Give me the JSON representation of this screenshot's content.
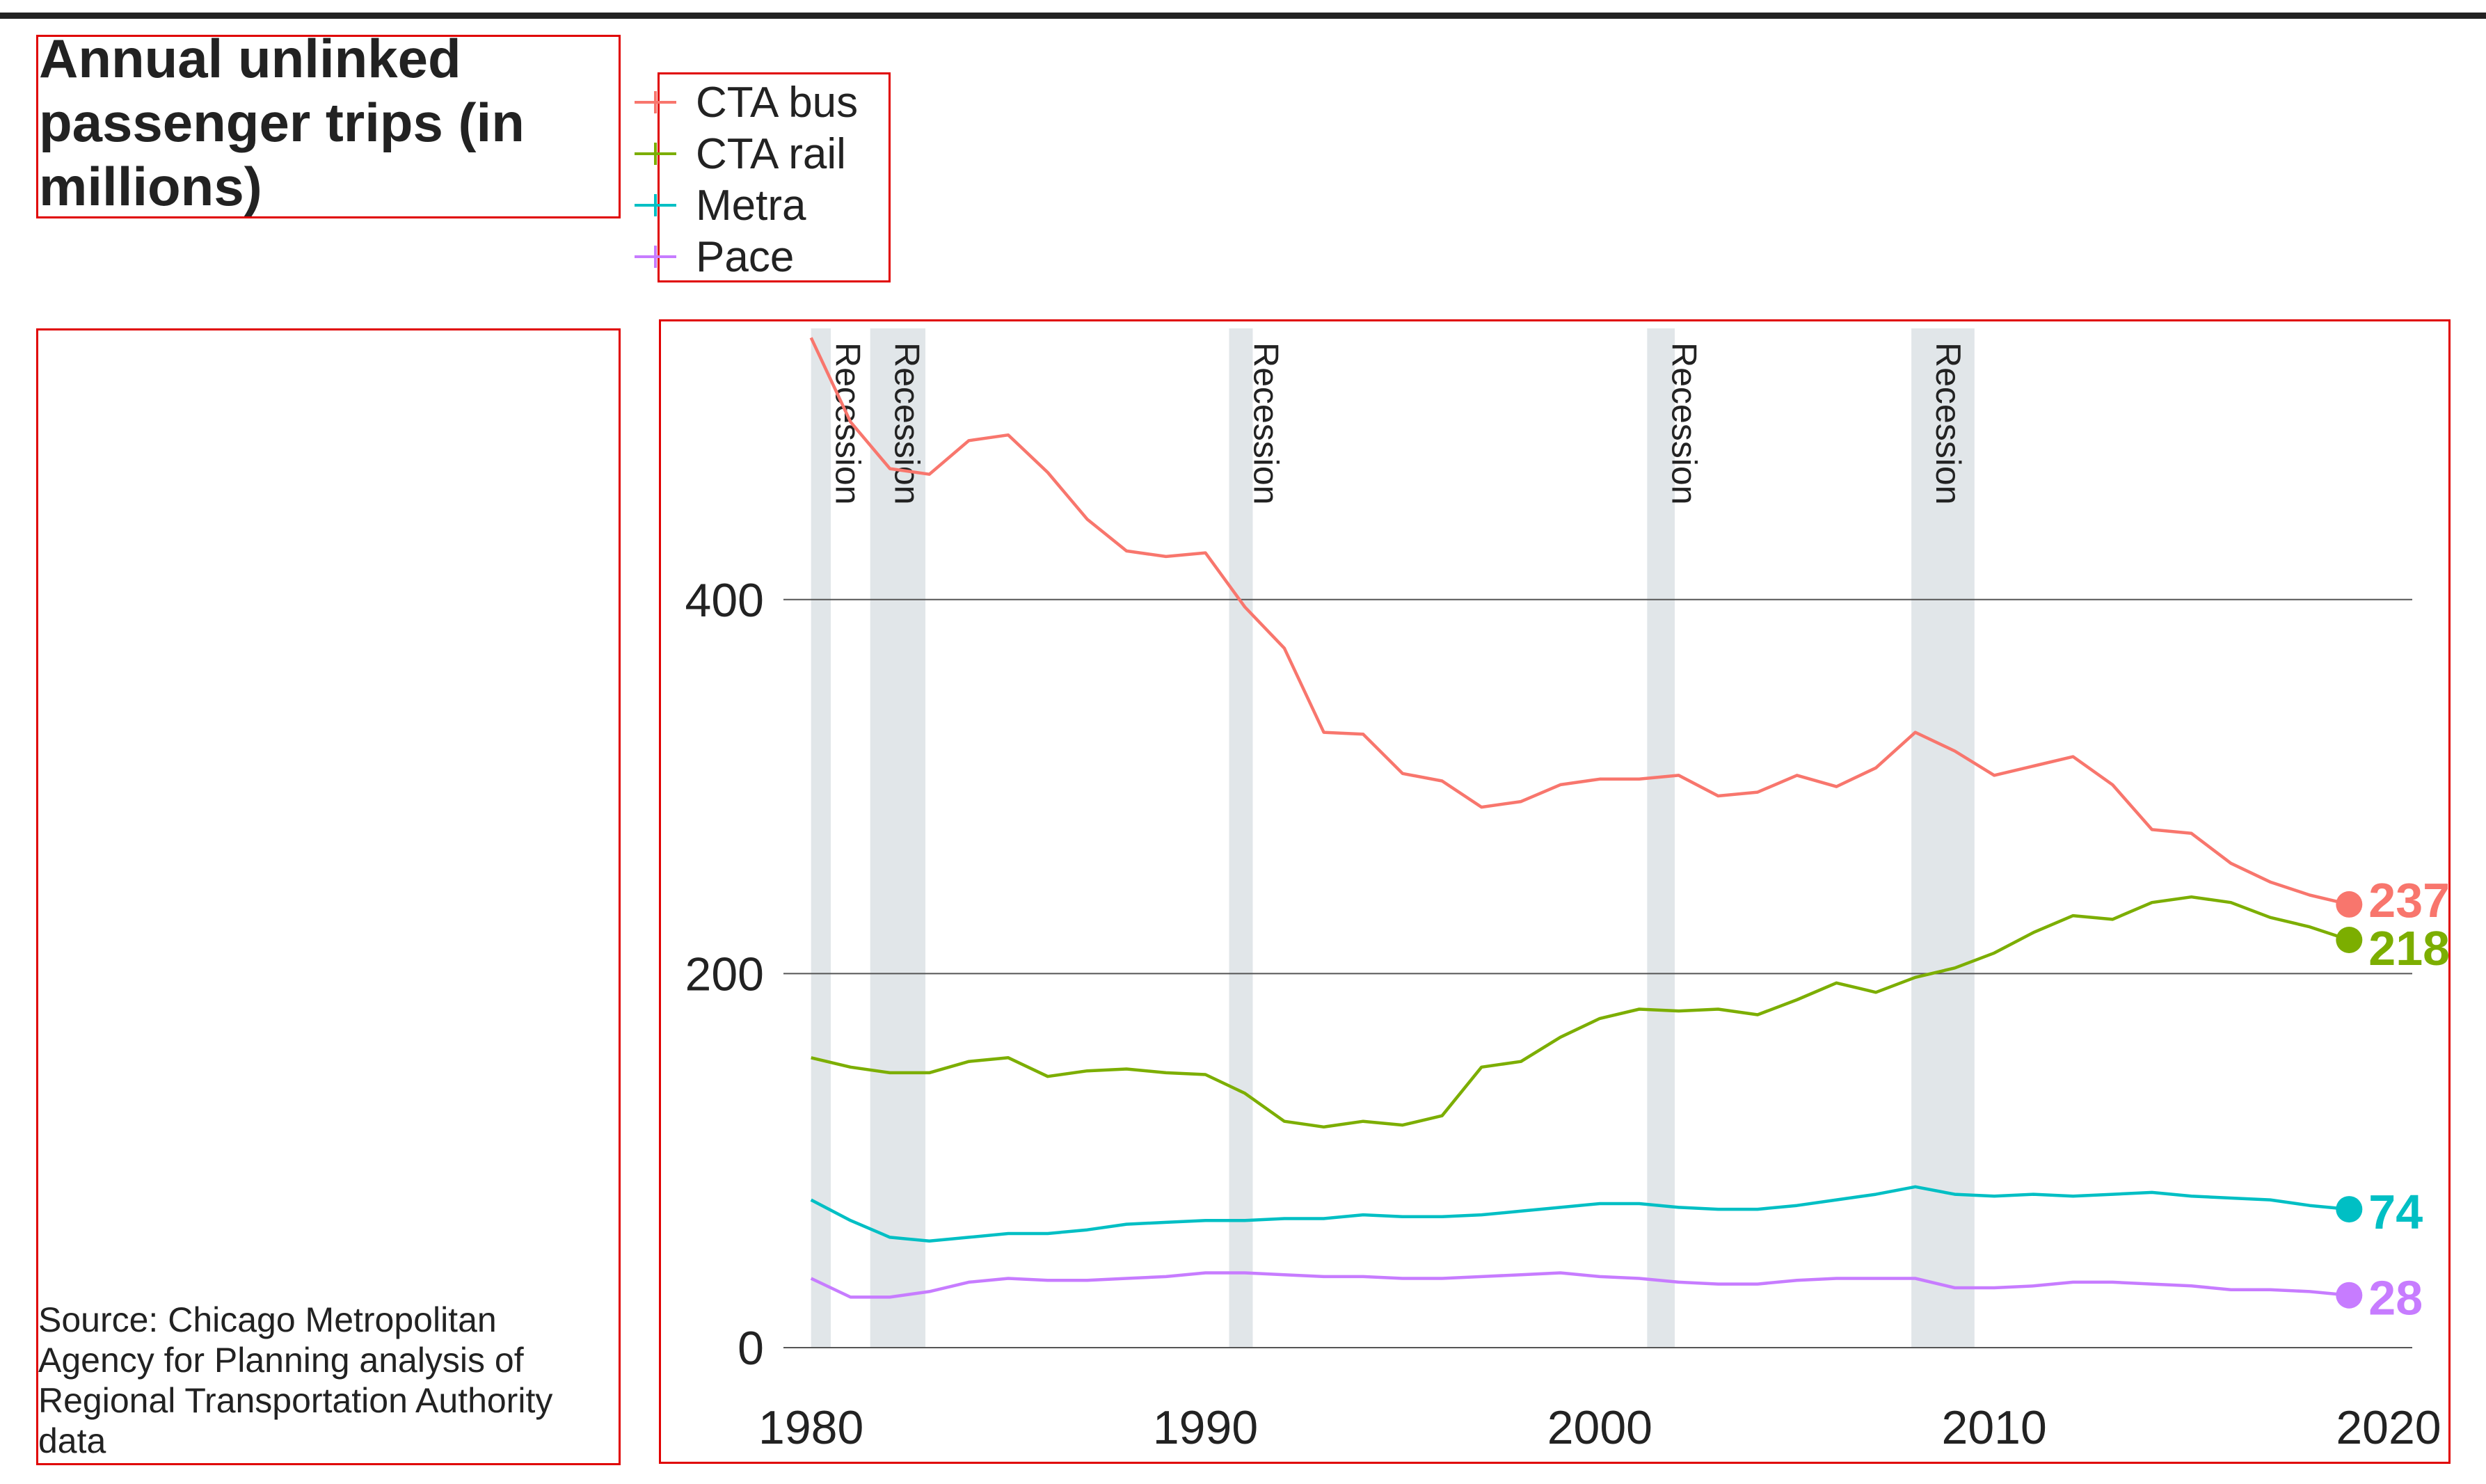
{
  "title": "Annual unlinked passenger trips (in millions)",
  "source": "Source: Chicago Metropolitan Agency for Planning analysis of Regional Transportation Authority data",
  "legend": [
    {
      "name": "CTA bus",
      "color": "#f8766d"
    },
    {
      "name": "CTA rail",
      "color": "#7cae00"
    },
    {
      "name": "Metra",
      "color": "#00bfc4"
    },
    {
      "name": "Pace",
      "color": "#c77cff"
    }
  ],
  "chart_data": {
    "type": "line",
    "title": "Annual unlinked passenger trips (in millions)",
    "xlabel": "",
    "ylabel": "",
    "xlim": [
      1979.3,
      2020.6
    ],
    "ylim": [
      0,
      545
    ],
    "x_ticks": [
      1980,
      1990,
      2000,
      2010,
      2020
    ],
    "y_ticks": [
      0,
      200,
      400
    ],
    "grid": "horizontal",
    "legend_position": "top",
    "recessions": [
      {
        "start": 1980.0,
        "end": 1980.5,
        "label": "Recession"
      },
      {
        "start": 1981.5,
        "end": 1982.9,
        "label": "Recession"
      },
      {
        "start": 1990.6,
        "end": 1991.2,
        "label": "Recession"
      },
      {
        "start": 2001.2,
        "end": 2001.9,
        "label": "Recession"
      },
      {
        "start": 2007.9,
        "end": 2009.5,
        "label": "Recession"
      }
    ],
    "x": [
      1980,
      1981,
      1982,
      1983,
      1984,
      1985,
      1986,
      1987,
      1988,
      1989,
      1990,
      1991,
      1992,
      1993,
      1994,
      1995,
      1996,
      1997,
      1998,
      1999,
      2000,
      2001,
      2002,
      2003,
      2004,
      2005,
      2006,
      2007,
      2008,
      2009,
      2010,
      2011,
      2012,
      2013,
      2014,
      2015,
      2016,
      2017,
      2018,
      2019
    ],
    "series": [
      {
        "name": "CTA bus",
        "color": "#f8766d",
        "end_label": "237",
        "values": [
          540,
          495,
          470,
          467,
          485,
          488,
          468,
          443,
          426,
          423,
          425,
          396,
          374,
          329,
          328,
          307,
          303,
          289,
          292,
          301,
          304,
          304,
          306,
          295,
          297,
          306,
          300,
          310,
          329,
          319,
          306,
          311,
          316,
          301,
          277,
          275,
          259,
          249,
          242,
          237
        ]
      },
      {
        "name": "CTA rail",
        "color": "#7cae00",
        "end_label": "218",
        "values": [
          155,
          150,
          147,
          147,
          153,
          155,
          145,
          148,
          149,
          147,
          146,
          136,
          121,
          118,
          121,
          119,
          124,
          150,
          153,
          166,
          176,
          181,
          180,
          181,
          178,
          186,
          195,
          190,
          198,
          203,
          211,
          222,
          231,
          229,
          238,
          241,
          238,
          230,
          225,
          218
        ]
      },
      {
        "name": "Metra",
        "color": "#00bfc4",
        "end_label": "74",
        "values": [
          79,
          68,
          59,
          57,
          59,
          61,
          61,
          63,
          66,
          67,
          68,
          68,
          69,
          69,
          71,
          70,
          70,
          71,
          73,
          75,
          77,
          77,
          75,
          74,
          74,
          76,
          79,
          82,
          86,
          82,
          81,
          82,
          81,
          82,
          83,
          81,
          80,
          79,
          76,
          74
        ]
      },
      {
        "name": "Pace",
        "color": "#c77cff",
        "end_label": "28",
        "values": [
          37,
          27,
          27,
          30,
          35,
          37,
          36,
          36,
          37,
          38,
          40,
          40,
          39,
          38,
          38,
          37,
          37,
          38,
          39,
          40,
          38,
          37,
          35,
          34,
          34,
          36,
          37,
          37,
          37,
          32,
          32,
          33,
          35,
          35,
          34,
          33,
          31,
          31,
          30,
          28
        ]
      }
    ]
  }
}
